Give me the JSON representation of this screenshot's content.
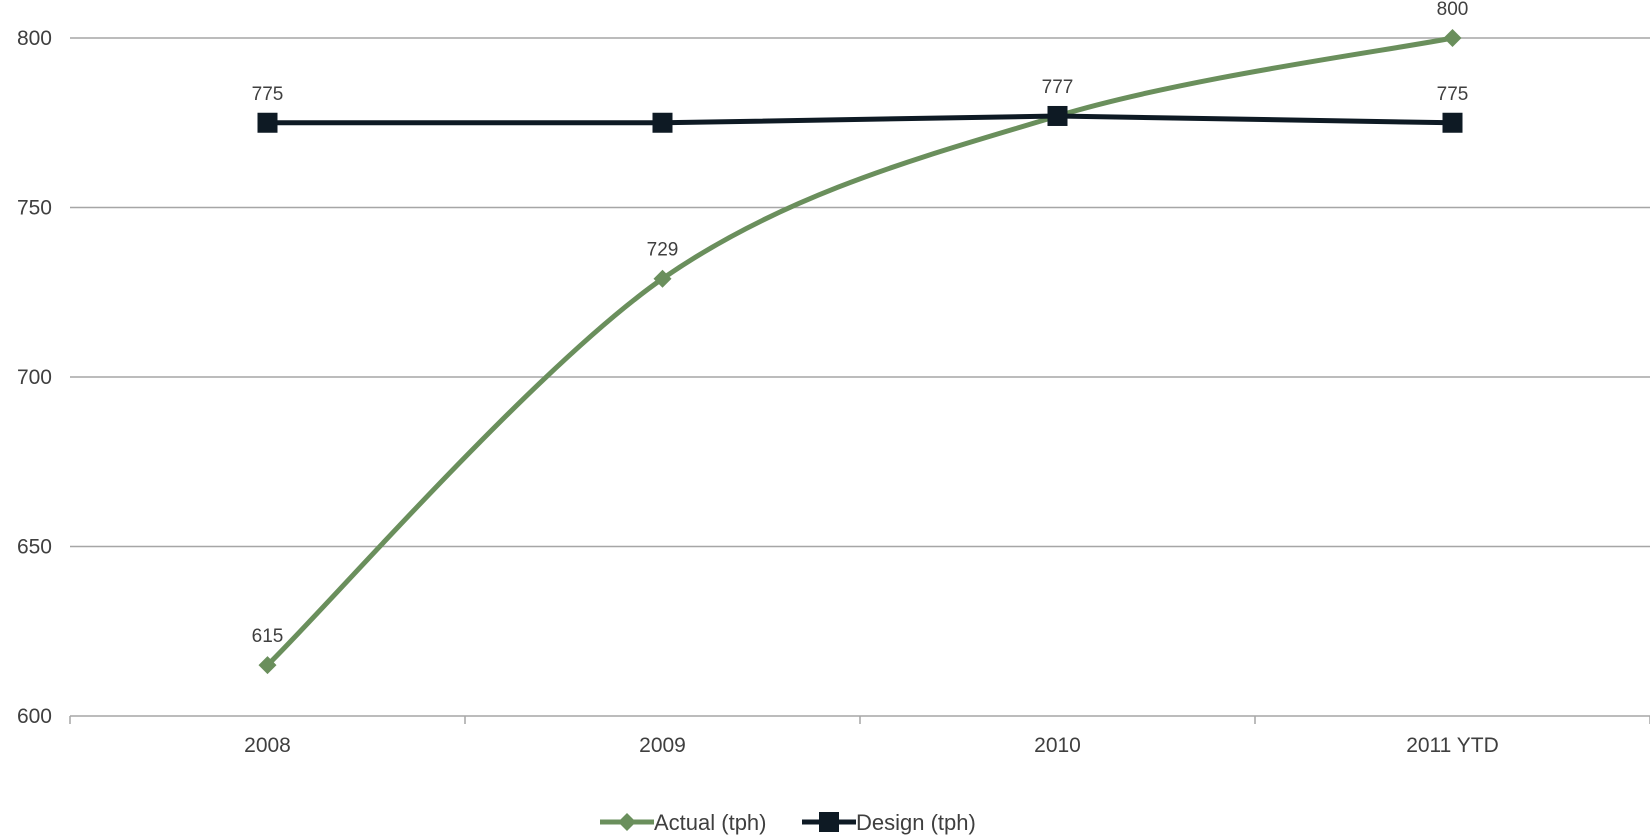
{
  "chart_data": {
    "type": "line",
    "title": "",
    "xlabel": "",
    "ylabel": "",
    "categories": [
      "2008",
      "2009",
      "2010",
      "2011 YTD"
    ],
    "ylim": [
      600,
      800
    ],
    "yticks": [
      600,
      650,
      700,
      750,
      800
    ],
    "grid": true,
    "legend_position": "bottom",
    "series": [
      {
        "name": "Actual (tph)",
        "values": [
          615,
          729,
          777,
          800
        ],
        "color": "#6a8f5c",
        "marker": "diamond",
        "smooth": true,
        "data_labels": [
          "615",
          "729",
          "",
          "800"
        ]
      },
      {
        "name": "Design (tph)",
        "values": [
          775,
          775,
          777,
          775
        ],
        "color": "#0e1a24",
        "marker": "square",
        "smooth": false,
        "data_labels": [
          "775",
          "",
          "777",
          "775"
        ]
      }
    ]
  }
}
